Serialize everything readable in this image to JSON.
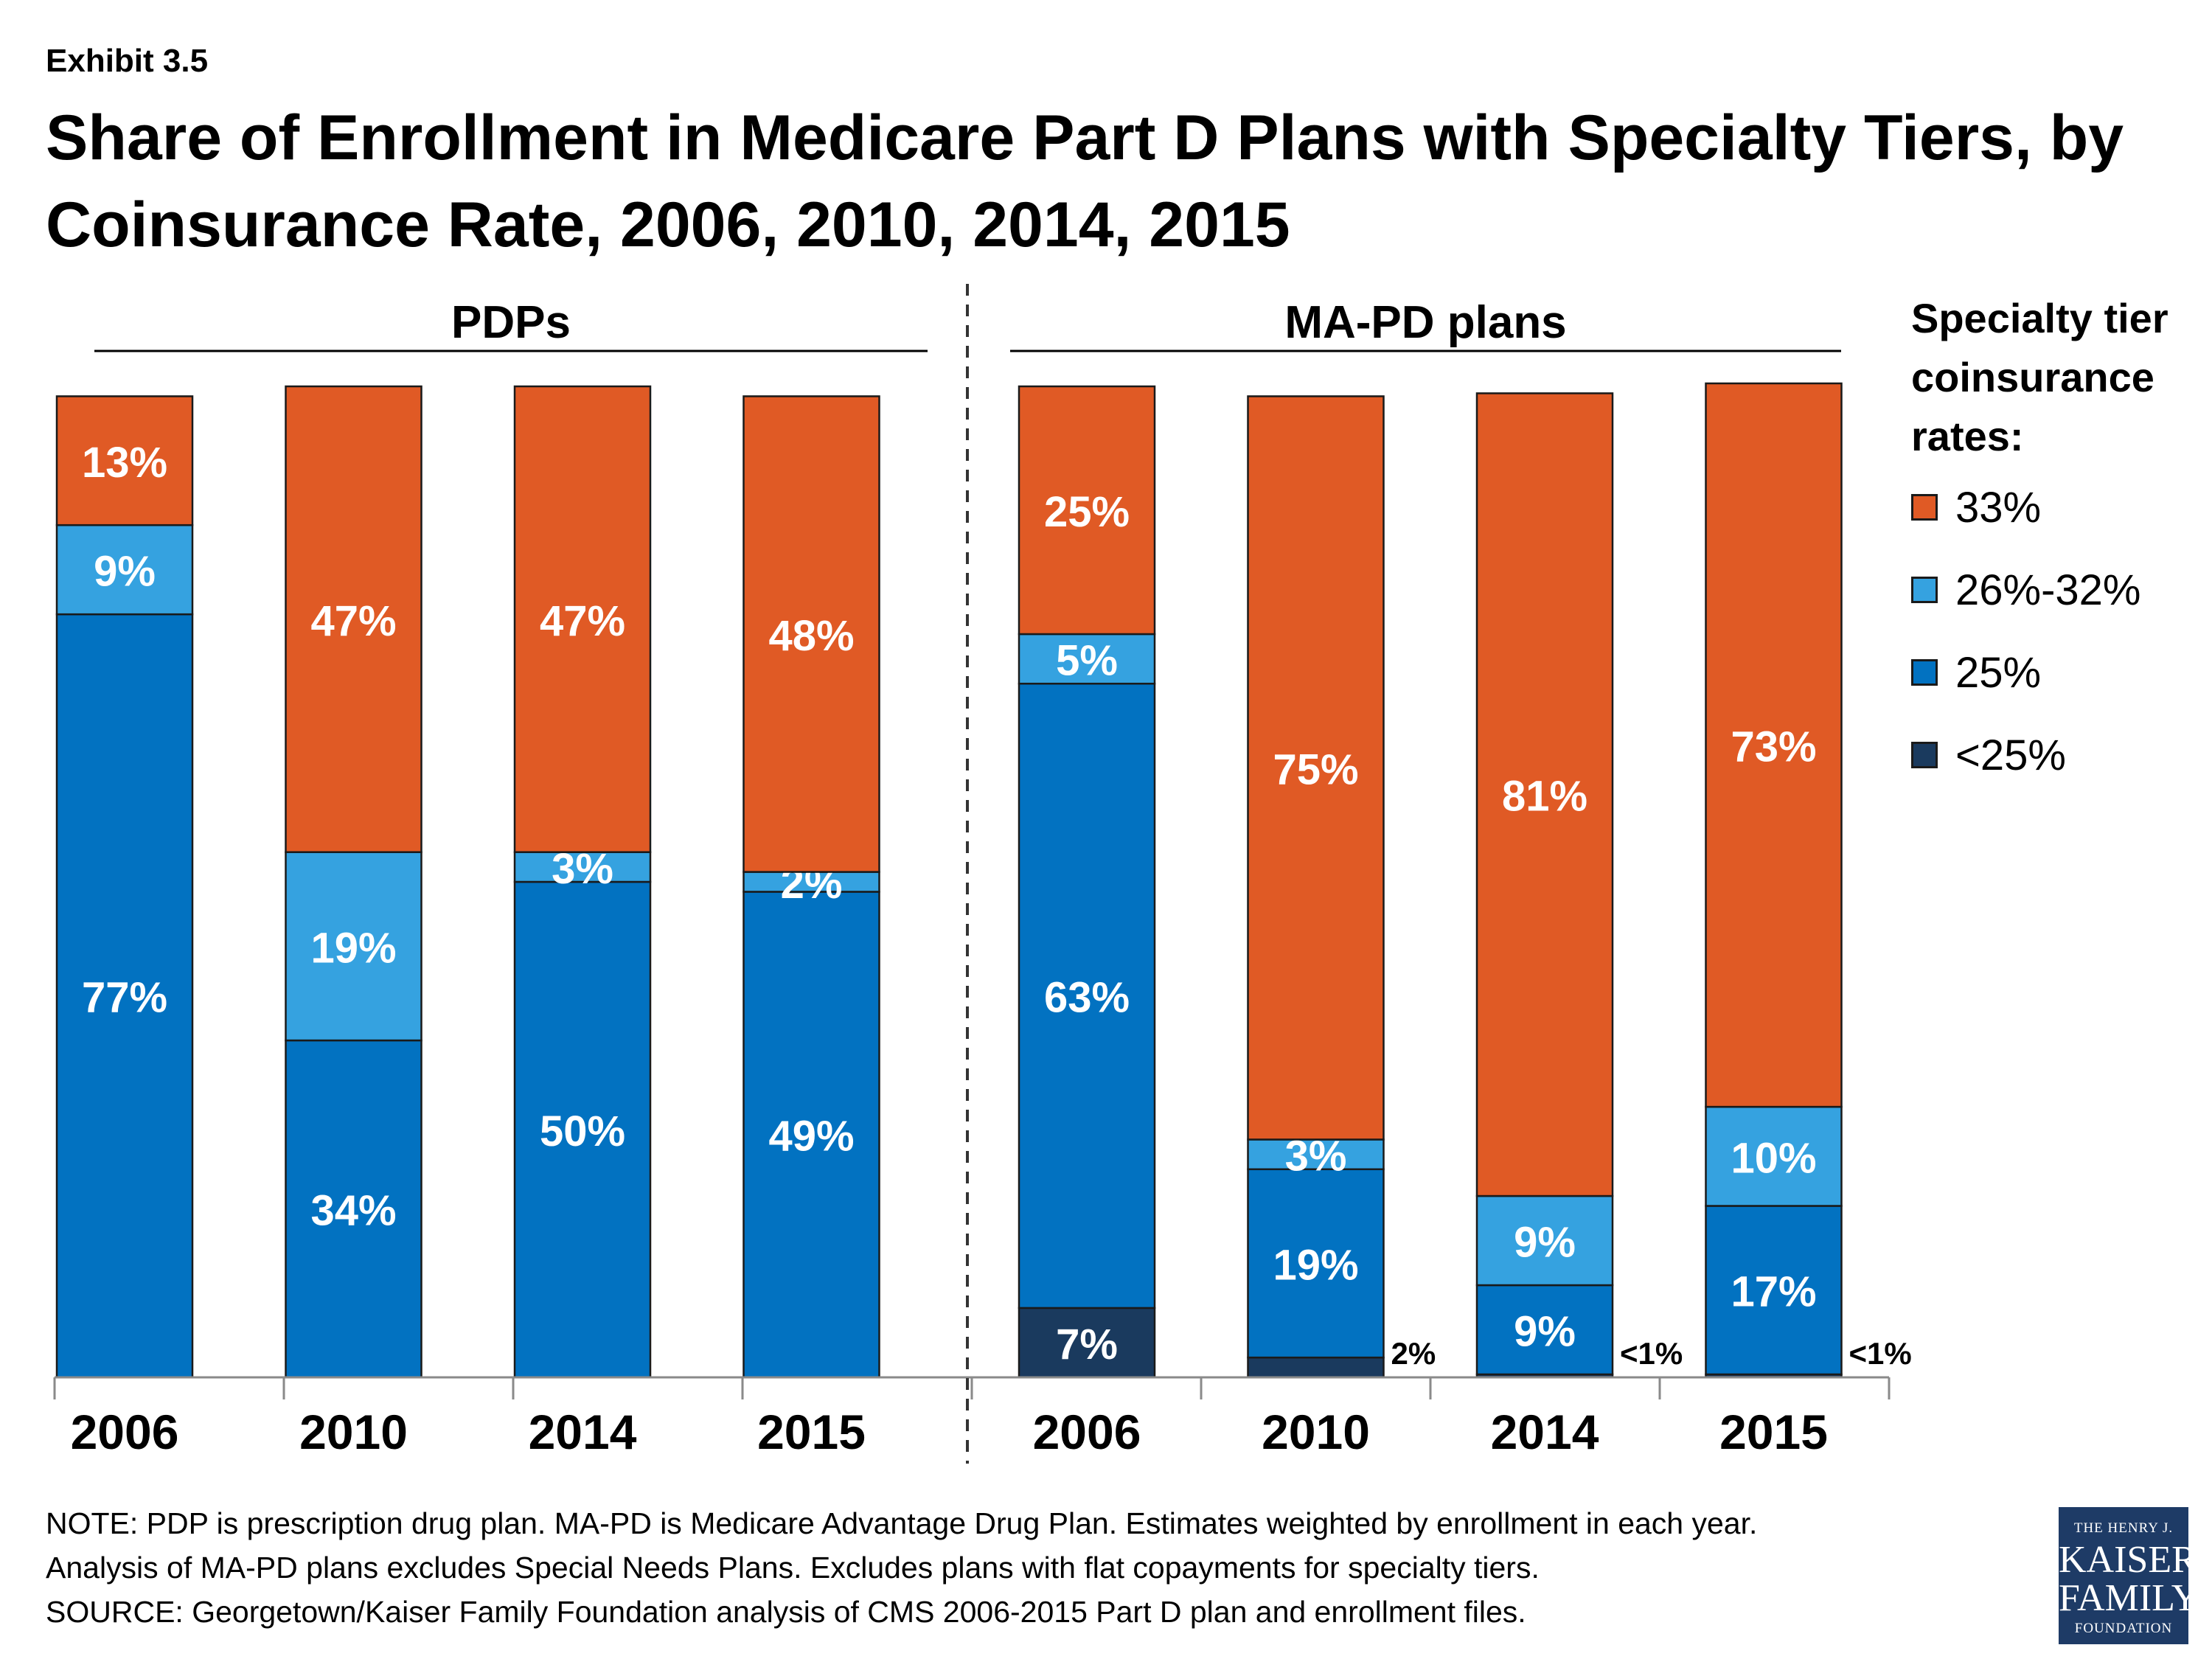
{
  "header": {
    "exhibit": "Exhibit 3.5",
    "title": "Share of Enrollment in Medicare Part D Plans with Specialty Tiers, by Coinsurance Rate, 2006, 2010, 2014, 2015"
  },
  "legend": {
    "title": "Specialty tier coinsurance rates:",
    "items": [
      {
        "label": "33%",
        "color": "#E05A25"
      },
      {
        "label": "26%-32%",
        "color": "#35A2E0"
      },
      {
        "label": "25%",
        "color": "#0272C1"
      },
      {
        "label": "<25%",
        "color": "#1A3A5E"
      }
    ]
  },
  "notes": [
    "NOTE: PDP is prescription drug plan. MA-PD is Medicare Advantage Drug Plan. Estimates weighted by enrollment in each year.",
    "Analysis of MA-PD plans excludes Special Needs Plans. Excludes plans with flat copayments for specialty tiers.",
    "SOURCE: Georgetown/Kaiser Family Foundation analysis of CMS 2006-2015 Part D plan and enrollment files."
  ],
  "logo": {
    "line1": "THE HENRY J.",
    "line2": "KAISER",
    "line3": "FAMILY",
    "line4": "FOUNDATION"
  },
  "chart_data": {
    "type": "bar",
    "stacked": true,
    "percent_stacked": true,
    "groups": [
      {
        "name": "PDPs",
        "categories": [
          "2006",
          "2010",
          "2014",
          "2015"
        ]
      },
      {
        "name": "MA-PD plans",
        "categories": [
          "2006",
          "2010",
          "2014",
          "2015"
        ]
      }
    ],
    "series": [
      {
        "name": "<25%",
        "color": "#1A3A5E",
        "values": [
          0,
          0,
          0,
          0,
          7,
          2,
          0.3,
          0.3
        ],
        "labels": [
          "",
          "",
          "",
          "",
          "7%",
          "2%",
          "<1%",
          "<1%"
        ]
      },
      {
        "name": "25%",
        "color": "#0272C1",
        "values": [
          77,
          34,
          50,
          49,
          63,
          19,
          9,
          17
        ],
        "labels": [
          "77%",
          "34%",
          "50%",
          "49%",
          "63%",
          "19%",
          "9%",
          "17%"
        ]
      },
      {
        "name": "26%-32%",
        "color": "#35A2E0",
        "values": [
          9,
          19,
          3,
          2,
          5,
          3,
          9,
          10
        ],
        "labels": [
          "9%",
          "19%",
          "3%",
          "2%",
          "5%",
          "3%",
          "9%",
          "10%"
        ]
      },
      {
        "name": "33%",
        "color": "#E05A25",
        "values": [
          13,
          47,
          47,
          48,
          25,
          75,
          81,
          73
        ],
        "labels": [
          "13%",
          "47%",
          "47%",
          "48%",
          "25%",
          "75%",
          "81%",
          "73%"
        ]
      }
    ],
    "ylim": [
      0,
      100
    ],
    "xlabel": "",
    "ylabel": ""
  }
}
